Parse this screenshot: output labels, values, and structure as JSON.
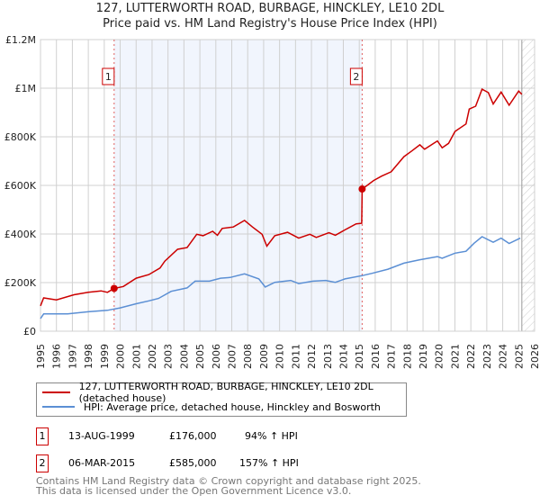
{
  "title_line1": "127, LUTTERWORTH ROAD, BURBAGE, HINCKLEY, LE10 2DL",
  "title_line2": "Price paid vs. HM Land Registry's House Price Index (HPI)",
  "chart_data": {
    "type": "line",
    "ylim": [
      0,
      1200000
    ],
    "xlim": [
      1995,
      2026
    ],
    "yticks": [
      {
        "v": 0,
        "label": "£0"
      },
      {
        "v": 200000,
        "label": "£200K"
      },
      {
        "v": 400000,
        "label": "£400K"
      },
      {
        "v": 600000,
        "label": "£600K"
      },
      {
        "v": 800000,
        "label": "£800K"
      },
      {
        "v": 1000000,
        "label": "£1M"
      },
      {
        "v": 1200000,
        "label": "£1.2M"
      }
    ],
    "xticks": [
      "1995",
      "1996",
      "1997",
      "1998",
      "1999",
      "2000",
      "2001",
      "2002",
      "2003",
      "2004",
      "2005",
      "2006",
      "2007",
      "2008",
      "2009",
      "2010",
      "2011",
      "2012",
      "2013",
      "2014",
      "2015",
      "2016",
      "2017",
      "2018",
      "2019",
      "2020",
      "2021",
      "2022",
      "2023",
      "2024",
      "2025",
      "2026"
    ],
    "grid": true,
    "shaded_range": [
      1999.62,
      2015.18
    ],
    "future_hatch_from": 2025.2,
    "series": [
      {
        "name": "127, LUTTERWORTH ROAD, BURBAGE, HINCKLEY, LE10 2DL (detached house)",
        "color": "#cc0000",
        "points": [
          [
            1995.0,
            104000
          ],
          [
            1995.2,
            137000
          ],
          [
            1996.0,
            129000
          ],
          [
            1997.1,
            150000
          ],
          [
            1998.0,
            160000
          ],
          [
            1998.8,
            166000
          ],
          [
            1999.2,
            160000
          ],
          [
            1999.62,
            176000
          ],
          [
            2000.2,
            184000
          ],
          [
            2001.0,
            218000
          ],
          [
            2001.8,
            233000
          ],
          [
            2002.5,
            260000
          ],
          [
            2002.8,
            288000
          ],
          [
            2003.6,
            337000
          ],
          [
            2004.2,
            344000
          ],
          [
            2004.8,
            399000
          ],
          [
            2005.2,
            393000
          ],
          [
            2005.8,
            411000
          ],
          [
            2006.1,
            395000
          ],
          [
            2006.4,
            423000
          ],
          [
            2007.1,
            429000
          ],
          [
            2007.8,
            456000
          ],
          [
            2008.3,
            429000
          ],
          [
            2008.9,
            399000
          ],
          [
            2009.2,
            350000
          ],
          [
            2009.7,
            393000
          ],
          [
            2010.5,
            407000
          ],
          [
            2011.2,
            383000
          ],
          [
            2011.9,
            399000
          ],
          [
            2012.3,
            386000
          ],
          [
            2013.1,
            405000
          ],
          [
            2013.5,
            395000
          ],
          [
            2014.1,
            417000
          ],
          [
            2014.8,
            442000
          ],
          [
            2015.15,
            444000
          ],
          [
            2015.18,
            585000
          ],
          [
            2015.9,
            620000
          ],
          [
            2016.4,
            638000
          ],
          [
            2017.0,
            656000
          ],
          [
            2017.8,
            718000
          ],
          [
            2018.3,
            742000
          ],
          [
            2018.8,
            767000
          ],
          [
            2019.1,
            749000
          ],
          [
            2019.9,
            783000
          ],
          [
            2020.2,
            755000
          ],
          [
            2020.6,
            773000
          ],
          [
            2021.0,
            822000
          ],
          [
            2021.7,
            853000
          ],
          [
            2021.9,
            914000
          ],
          [
            2022.3,
            926000
          ],
          [
            2022.7,
            996000
          ],
          [
            2023.1,
            982000
          ],
          [
            2023.4,
            935000
          ],
          [
            2023.9,
            984000
          ],
          [
            2024.4,
            930000
          ],
          [
            2025.0,
            988000
          ],
          [
            2025.2,
            975000
          ]
        ]
      },
      {
        "name": "HPI: Average price, detached house, Hinckley and Bosworth",
        "color": "#5b8fd4",
        "points": [
          [
            1995.0,
            52000
          ],
          [
            1995.2,
            71000
          ],
          [
            1996.7,
            71000
          ],
          [
            1998.0,
            80000
          ],
          [
            1999.2,
            86000
          ],
          [
            2000.0,
            96000
          ],
          [
            2001.0,
            113000
          ],
          [
            2001.8,
            125000
          ],
          [
            2002.4,
            135000
          ],
          [
            2003.2,
            164000
          ],
          [
            2004.2,
            178000
          ],
          [
            2004.7,
            206000
          ],
          [
            2005.6,
            206000
          ],
          [
            2006.3,
            218000
          ],
          [
            2006.9,
            221000
          ],
          [
            2007.8,
            236000
          ],
          [
            2008.7,
            215000
          ],
          [
            2009.1,
            182000
          ],
          [
            2009.7,
            201000
          ],
          [
            2010.7,
            209000
          ],
          [
            2011.2,
            196000
          ],
          [
            2012.1,
            206000
          ],
          [
            2012.9,
            209000
          ],
          [
            2013.5,
            201000
          ],
          [
            2014.1,
            215000
          ],
          [
            2015.2,
            229000
          ],
          [
            2015.8,
            238000
          ],
          [
            2016.8,
            255000
          ],
          [
            2017.8,
            280000
          ],
          [
            2018.8,
            294000
          ],
          [
            2019.9,
            307000
          ],
          [
            2020.2,
            300000
          ],
          [
            2021.0,
            321000
          ],
          [
            2021.7,
            329000
          ],
          [
            2022.2,
            362000
          ],
          [
            2022.7,
            389000
          ],
          [
            2023.4,
            366000
          ],
          [
            2023.9,
            383000
          ],
          [
            2024.4,
            361000
          ],
          [
            2025.1,
            383000
          ]
        ]
      }
    ],
    "sales": [
      {
        "label": "1",
        "x": 1999.62,
        "y": 176000
      },
      {
        "label": "2",
        "x": 2015.18,
        "y": 585000
      }
    ]
  },
  "legend": {
    "red": "127, LUTTERWORTH ROAD, BURBAGE, HINCKLEY, LE10 2DL (detached house)",
    "blue": "HPI: Average price, detached house, Hinckley and Bosworth"
  },
  "transactions": [
    {
      "num": "1",
      "date": "13-AUG-1999",
      "price": "£176,000",
      "hpi": "94% ↑ HPI"
    },
    {
      "num": "2",
      "date": "06-MAR-2015",
      "price": "£585,000",
      "hpi": "157% ↑ HPI"
    }
  ],
  "footer_line1": "Contains HM Land Registry data © Crown copyright and database right 2025.",
  "footer_line2": "This data is licensed under the Open Government Licence v3.0."
}
